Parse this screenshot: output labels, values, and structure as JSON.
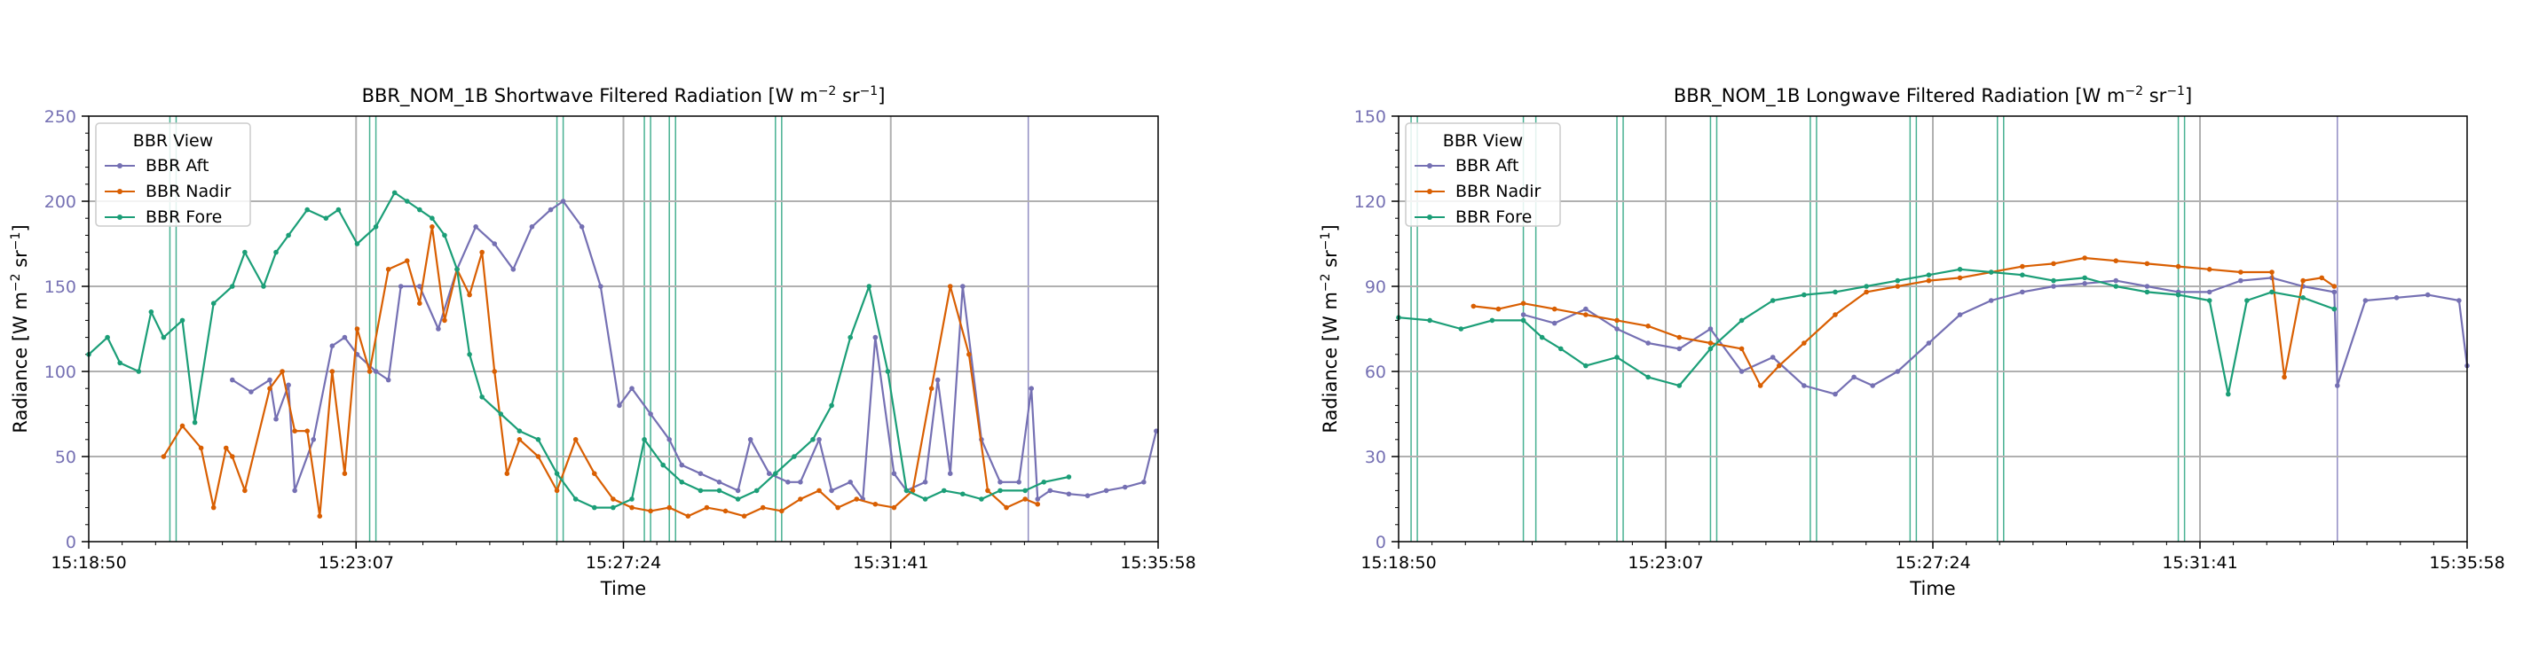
{
  "colors": {
    "aft": "#7570b3",
    "nadir": "#d95f02",
    "fore": "#1b9e77",
    "grid": "#b0b0b0",
    "ytick": "#7570b3"
  },
  "legend": {
    "title": "BBR View",
    "items": [
      "BBR Aft",
      "BBR Nadir",
      "BBR Fore"
    ]
  },
  "chart_data": [
    {
      "type": "line",
      "title_main": "BBR_NOM_1B Shortwave Filtered Radiation [W m",
      "title_exp1": "−2",
      "title_mid": " sr",
      "title_exp2": "−1",
      "title_end": "]",
      "xlabel": "Time",
      "ylabel_main": "Radiance [W m",
      "ylabel_exp1": "−2",
      "ylabel_mid": " sr",
      "ylabel_exp2": "−1",
      "ylabel_end": "]",
      "x_ticks": [
        "15:18:50",
        "15:23:07",
        "15:27:24",
        "15:31:41",
        "15:35:58"
      ],
      "y_ticks": [
        "0",
        "50",
        "100",
        "150",
        "200",
        "250"
      ],
      "ylim": [
        0,
        250
      ],
      "x_unit": "minutes after 15:18:50",
      "xlim": [
        0,
        17.13
      ],
      "grid": true,
      "legend_position": "top-left",
      "vlines": [
        1.3,
        1.4,
        4.5,
        4.6,
        7.5,
        7.6,
        8.9,
        9.0,
        9.3,
        9.4,
        11.0,
        11.1,
        15.05
      ],
      "series": [
        {
          "name": "BBR Aft",
          "color": "#7570b3",
          "x": [
            2.3,
            2.6,
            2.9,
            3.0,
            3.2,
            3.3,
            3.6,
            3.9,
            4.1,
            4.3,
            4.6,
            4.8,
            5.0,
            5.3,
            5.6,
            5.9,
            6.2,
            6.5,
            6.8,
            7.1,
            7.4,
            7.6,
            7.9,
            8.2,
            8.5,
            8.7,
            9.0,
            9.3,
            9.5,
            9.8,
            10.1,
            10.4,
            10.6,
            10.9,
            11.2,
            11.4,
            11.7,
            11.9,
            12.2,
            12.4,
            12.6,
            12.9,
            13.1,
            13.4,
            13.6,
            13.8,
            14.0,
            14.3,
            14.6,
            14.9,
            15.1,
            15.2,
            15.4,
            15.7,
            16.0,
            16.3,
            16.6,
            16.9,
            17.1
          ],
          "y": [
            95,
            88,
            95,
            72,
            92,
            30,
            60,
            115,
            120,
            110,
            100,
            95,
            150,
            150,
            125,
            160,
            185,
            175,
            160,
            185,
            195,
            200,
            185,
            150,
            80,
            90,
            75,
            60,
            45,
            40,
            35,
            30,
            60,
            40,
            35,
            35,
            60,
            30,
            35,
            25,
            120,
            40,
            30,
            35,
            95,
            40,
            150,
            60,
            35,
            35,
            90,
            25,
            30,
            28,
            27,
            30,
            32,
            35,
            65
          ]
        },
        {
          "name": "BBR Nadir",
          "color": "#d95f02",
          "x": [
            1.2,
            1.5,
            1.8,
            2.0,
            2.2,
            2.3,
            2.5,
            2.9,
            3.1,
            3.3,
            3.5,
            3.7,
            3.9,
            4.1,
            4.3,
            4.5,
            4.8,
            5.1,
            5.3,
            5.5,
            5.7,
            5.9,
            6.1,
            6.3,
            6.5,
            6.7,
            6.9,
            7.2,
            7.5,
            7.8,
            8.1,
            8.4,
            8.7,
            9.0,
            9.3,
            9.6,
            9.9,
            10.2,
            10.5,
            10.8,
            11.1,
            11.4,
            11.7,
            12.0,
            12.3,
            12.6,
            12.9,
            13.2,
            13.5,
            13.8,
            14.1,
            14.4,
            14.7,
            15.0,
            15.2
          ],
          "y": [
            50,
            68,
            55,
            20,
            55,
            50,
            30,
            90,
            100,
            65,
            65,
            15,
            100,
            40,
            125,
            100,
            160,
            165,
            140,
            185,
            130,
            160,
            145,
            170,
            100,
            40,
            60,
            50,
            30,
            60,
            40,
            25,
            20,
            18,
            20,
            15,
            20,
            18,
            15,
            20,
            18,
            25,
            30,
            20,
            25,
            22,
            20,
            30,
            90,
            150,
            110,
            30,
            20,
            25,
            22
          ]
        },
        {
          "name": "BBR Fore",
          "color": "#1b9e77",
          "x": [
            0.0,
            0.3,
            0.5,
            0.8,
            1.0,
            1.2,
            1.5,
            1.7,
            2.0,
            2.3,
            2.5,
            2.8,
            3.0,
            3.2,
            3.5,
            3.8,
            4.0,
            4.3,
            4.6,
            4.9,
            5.1,
            5.3,
            5.5,
            5.7,
            5.9,
            6.1,
            6.3,
            6.6,
            6.9,
            7.2,
            7.5,
            7.8,
            8.1,
            8.4,
            8.7,
            8.9,
            9.2,
            9.5,
            9.8,
            10.1,
            10.4,
            10.7,
            11.0,
            11.3,
            11.6,
            11.9,
            12.2,
            12.5,
            12.8,
            13.1,
            13.4,
            13.7,
            14.0,
            14.3,
            14.6,
            15.0,
            15.3,
            15.7
          ],
          "y": [
            110,
            120,
            105,
            100,
            135,
            120,
            130,
            70,
            140,
            150,
            170,
            150,
            170,
            180,
            195,
            190,
            195,
            175,
            185,
            205,
            200,
            195,
            190,
            180,
            160,
            110,
            85,
            75,
            65,
            60,
            40,
            25,
            20,
            20,
            25,
            60,
            45,
            35,
            30,
            30,
            25,
            30,
            40,
            50,
            60,
            80,
            120,
            150,
            100,
            30,
            25,
            30,
            28,
            25,
            30,
            30,
            35,
            38
          ]
        }
      ]
    },
    {
      "type": "line",
      "title_main": "BBR_NOM_1B Longwave Filtered Radiation [W m",
      "title_exp1": "−2",
      "title_mid": " sr",
      "title_exp2": "−1",
      "title_end": "]",
      "xlabel": "Time",
      "ylabel_main": "Radiance [W m",
      "ylabel_exp1": "−2",
      "ylabel_mid": " sr",
      "ylabel_exp2": "−1",
      "ylabel_end": "]",
      "x_ticks": [
        "15:18:50",
        "15:23:07",
        "15:27:24",
        "15:31:41",
        "15:35:58"
      ],
      "y_ticks": [
        "0",
        "30",
        "60",
        "90",
        "120",
        "150"
      ],
      "ylim": [
        0,
        150
      ],
      "x_unit": "minutes after 15:18:50",
      "xlim": [
        0,
        17.13
      ],
      "grid": true,
      "legend_position": "top-left",
      "vlines": [
        0.2,
        0.3,
        2.0,
        2.2,
        3.5,
        3.6,
        5.0,
        5.1,
        6.6,
        6.7,
        8.2,
        8.3,
        9.6,
        9.7,
        12.5,
        12.6,
        15.05
      ],
      "series": [
        {
          "name": "BBR Aft",
          "color": "#7570b3",
          "x": [
            2.0,
            2.5,
            3.0,
            3.5,
            4.0,
            4.5,
            5.0,
            5.5,
            6.0,
            6.5,
            7.0,
            7.3,
            7.6,
            8.0,
            8.5,
            9.0,
            9.5,
            10.0,
            10.5,
            11.0,
            11.5,
            12.0,
            12.5,
            13.0,
            13.5,
            14.0,
            14.5,
            15.0,
            15.05,
            15.5,
            16.0,
            16.5,
            17.0,
            17.13
          ],
          "y": [
            80,
            77,
            82,
            75,
            70,
            68,
            75,
            60,
            65,
            55,
            52,
            58,
            55,
            60,
            70,
            80,
            85,
            88,
            90,
            91,
            92,
            90,
            88,
            88,
            92,
            93,
            90,
            88,
            55,
            85,
            86,
            87,
            85,
            62
          ]
        },
        {
          "name": "BBR Nadir",
          "color": "#d95f02",
          "x": [
            1.2,
            1.6,
            2.0,
            2.5,
            3.0,
            3.5,
            4.0,
            4.5,
            5.0,
            5.5,
            5.8,
            6.1,
            6.5,
            7.0,
            7.5,
            8.0,
            8.5,
            9.0,
            9.5,
            10.0,
            10.5,
            11.0,
            11.5,
            12.0,
            12.5,
            13.0,
            13.5,
            14.0,
            14.2,
            14.5,
            14.8,
            15.0
          ],
          "y": [
            83,
            82,
            84,
            82,
            80,
            78,
            76,
            72,
            70,
            68,
            55,
            62,
            70,
            80,
            88,
            90,
            92,
            93,
            95,
            97,
            98,
            100,
            99,
            98,
            97,
            96,
            95,
            95,
            58,
            92,
            93,
            90
          ]
        },
        {
          "name": "BBR Fore",
          "color": "#1b9e77",
          "x": [
            0.0,
            0.5,
            1.0,
            1.5,
            2.0,
            2.3,
            2.6,
            3.0,
            3.5,
            4.0,
            4.5,
            5.0,
            5.5,
            6.0,
            6.5,
            7.0,
            7.5,
            8.0,
            8.5,
            9.0,
            9.5,
            10.0,
            10.5,
            11.0,
            11.5,
            12.0,
            12.5,
            13.0,
            13.3,
            13.6,
            14.0,
            14.5,
            15.0
          ],
          "y": [
            79,
            78,
            75,
            78,
            78,
            72,
            68,
            62,
            65,
            58,
            55,
            68,
            78,
            85,
            87,
            88,
            90,
            92,
            94,
            96,
            95,
            94,
            92,
            93,
            90,
            88,
            87,
            85,
            52,
            85,
            88,
            86,
            82
          ]
        }
      ]
    }
  ]
}
